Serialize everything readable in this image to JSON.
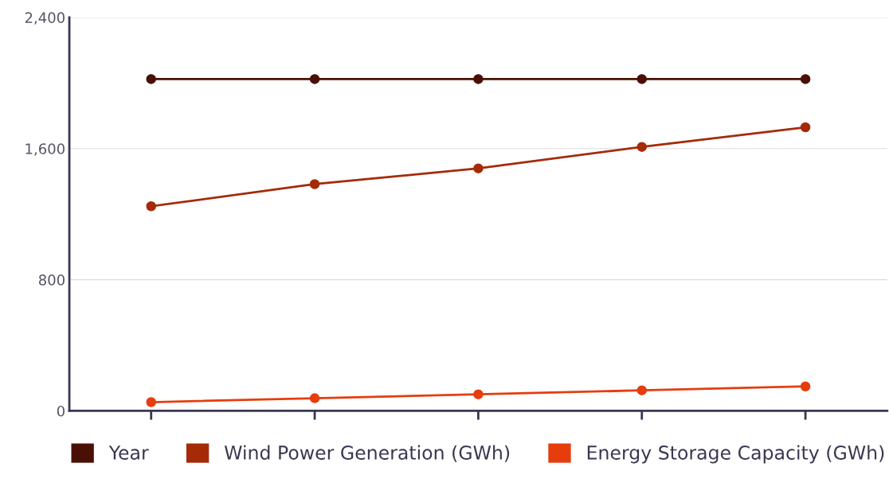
{
  "chart_data": {
    "type": "line",
    "categories": [
      null,
      null,
      null,
      null,
      null
    ],
    "series": [
      {
        "name": "Year",
        "color": "#4a1006",
        "values": [
          2024,
          2024,
          2024,
          2024,
          2024
        ]
      },
      {
        "name": "Wind Power Generation (GWh)",
        "color": "#a52a08",
        "values": [
          1248,
          1383,
          1479,
          1610,
          1730
        ]
      },
      {
        "name": "Energy Storage Capacity (GWh)",
        "color": "#e63d0c",
        "values": [
          53,
          77,
          101,
          125,
          149
        ]
      }
    ],
    "ylim": [
      0,
      2400
    ],
    "yticks": [
      0,
      {
        "value": 800,
        "label": "800"
      },
      {
        "value": 1600,
        "label": "1,600"
      },
      {
        "value": 2400,
        "label": "2,400"
      }
    ],
    "grid": "y",
    "legend": "bottom",
    "marker": "circle",
    "line_style": "solid"
  }
}
